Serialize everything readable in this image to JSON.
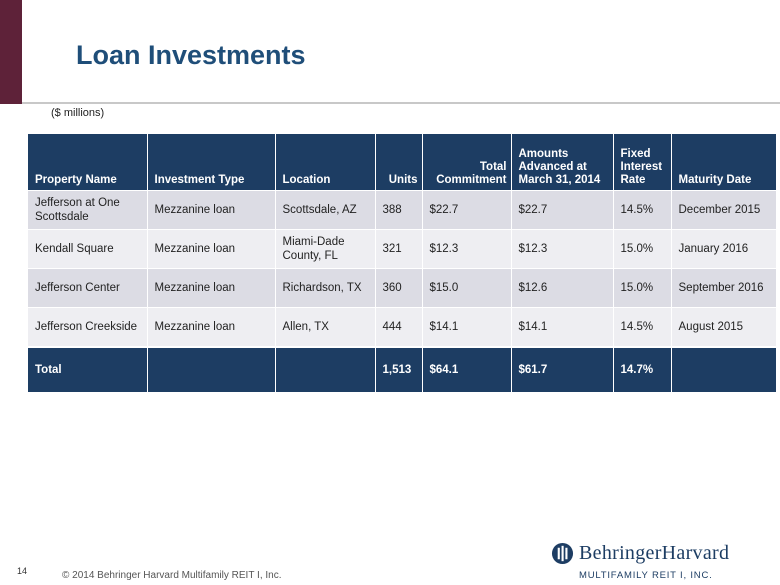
{
  "slide": {
    "title": "Loan Investments",
    "units_note": "($ millions)",
    "page_number": "14",
    "copyright": "© 2014 Behringer Harvard Multifamily REIT I, Inc."
  },
  "logo": {
    "name": "BehringerHarvard",
    "subtitle": "MULTIFAMILY REIT I, INC.",
    "icon": "behringer-harvard-logo-icon",
    "brand_color": "#1d3d63"
  },
  "table": {
    "headers": {
      "property": "Property Name",
      "type": "Investment Type",
      "location": "Location",
      "units": "Units",
      "commitment": "Total Commitment",
      "advanced": "Amounts Advanced at March 31, 2014",
      "rate": "Fixed Interest Rate",
      "maturity": "Maturity Date"
    },
    "rows": [
      {
        "property": "Jefferson at One Scottsdale",
        "type": "Mezzanine loan",
        "location": "Scottsdale, AZ",
        "units": "388",
        "commitment": "$22.7",
        "advanced": "$22.7",
        "rate": "14.5%",
        "maturity": "December 2015"
      },
      {
        "property": "Kendall Square",
        "type": "Mezzanine loan",
        "location": "Miami-Dade County, FL",
        "units": "321",
        "commitment": "$12.3",
        "advanced": "$12.3",
        "rate": "15.0%",
        "maturity": "January 2016"
      },
      {
        "property": "Jefferson Center",
        "type": "Mezzanine loan",
        "location": "Richardson, TX",
        "units": "360",
        "commitment": "$15.0",
        "advanced": "$12.6",
        "rate": "15.0%",
        "maturity": "September 2016"
      },
      {
        "property": "Jefferson Creekside",
        "type": "Mezzanine loan",
        "location": "Allen, TX",
        "units": "444",
        "commitment": "$14.1",
        "advanced": "$14.1",
        "rate": "14.5%",
        "maturity": "August 2015"
      }
    ],
    "total": {
      "label": "Total",
      "units": "1,513",
      "commitment": "$64.1",
      "advanced": "$61.7",
      "rate": "14.7%"
    }
  },
  "colors": {
    "header_fill": "#1d3d63",
    "title_color": "#1f4e79",
    "accent_bar": "#5e2239",
    "row_odd": "#dcdce4",
    "row_even": "#eeeef2"
  }
}
